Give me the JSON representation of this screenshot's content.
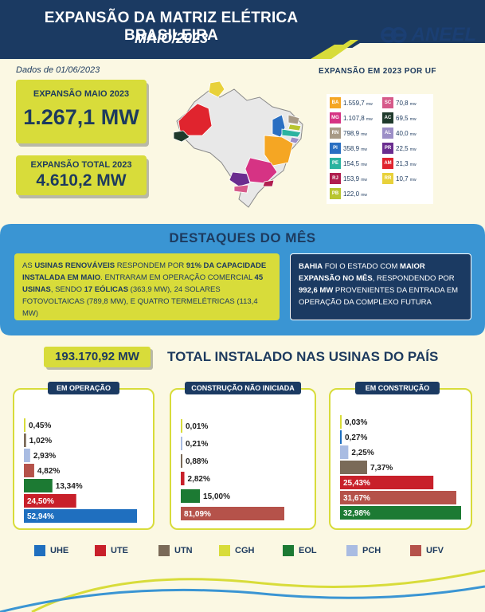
{
  "header": {
    "title": "EXPANSÃO DA MATRIZ ELÉTRICA BRASILEIRA",
    "subtitle": "MAIO/2023",
    "logo_text": "ANEEL",
    "colors": {
      "navy": "#1b3a62",
      "accent": "#d8dc3a"
    }
  },
  "date_text": "Dados de 01/06/2023",
  "expansion_month": {
    "label": "EXPANSÃO MAIO 2023",
    "value": "1.267,1 MW"
  },
  "expansion_total": {
    "label": "EXPANSÃO TOTAL 2023",
    "value": "4.610,2 MW"
  },
  "uf_expansion": {
    "title": "EXPANSÃO EM 2023 POR UF",
    "unit": "MW",
    "items": [
      {
        "uf": "BA",
        "value": "1.559,7",
        "color": "#f5a623"
      },
      {
        "uf": "MG",
        "value": "1.107,8",
        "color": "#d63384"
      },
      {
        "uf": "RN",
        "value": "798,9",
        "color": "#a89a86"
      },
      {
        "uf": "PI",
        "value": "358,9",
        "color": "#2a6fc2"
      },
      {
        "uf": "PE",
        "value": "154,5",
        "color": "#2bb3a0"
      },
      {
        "uf": "RJ",
        "value": "153,9",
        "color": "#b01e4f"
      },
      {
        "uf": "PB",
        "value": "122,0",
        "color": "#b8c530"
      },
      {
        "uf": "SC",
        "value": "70,8",
        "color": "#d65a8a"
      },
      {
        "uf": "AC",
        "value": "69,5",
        "color": "#1f3a2c"
      },
      {
        "uf": "AL",
        "value": "40,0",
        "color": "#9d8fc7"
      },
      {
        "uf": "PR",
        "value": "22,5",
        "color": "#6a2d8f"
      },
      {
        "uf": "AM",
        "value": "21,3",
        "color": "#e0242e"
      },
      {
        "uf": "RR",
        "value": "10,7",
        "color": "#e8d13a"
      }
    ]
  },
  "highlights": {
    "title": "DESTAQUES DO MÊS",
    "left": {
      "p1": "AS ",
      "b1": "USINAS RENOVÁVEIS",
      "p2": " RESPONDEM POR ",
      "b2": "91% DA CAPACIDADE INSTALADA EM MAIO",
      "p3": ". ENTRARAM EM OPERAÇÃO COMERCIAL ",
      "b3": "45 USINAS",
      "p4": ", SENDO ",
      "b4": "17 EÓLICAS",
      "p5": " (363,9 MW), 24 SOLARES FOTOVOLTAICAS (789,8 MW), E QUATRO TERMELÉTRICAS (113,4 MW)"
    },
    "right": {
      "b1": "BAHIA",
      "p1": " FOI O ESTADO COM ",
      "b2": "MAIOR EXPANSÃO NO MÊS",
      "p2": ", RESPONDENDO POR ",
      "b3": "992,6 MW",
      "p3": " PROVENIENTES DA ENTRADA EM OPERAÇÃO DA COMPLEXO FUTURA"
    }
  },
  "total_installed": {
    "value": "193.170,92 MW",
    "label": "TOTAL INSTALADO NAS USINAS DO PAÍS"
  },
  "legend": [
    {
      "name": "UHE",
      "color": "#1f6fbf"
    },
    {
      "name": "UTE",
      "color": "#c8202a"
    },
    {
      "name": "UTN",
      "color": "#7a6a58"
    },
    {
      "name": "CGH",
      "color": "#d8dc3a"
    },
    {
      "name": "EOL",
      "color": "#1c7a33"
    },
    {
      "name": "PCH",
      "color": "#a9bce2"
    },
    {
      "name": "UFV",
      "color": "#b5524a"
    }
  ],
  "chart_data": [
    {
      "type": "bar",
      "title": "EM OPERAÇÃO",
      "categories": [
        "CGH",
        "UTN",
        "PCH",
        "UFV",
        "EOL",
        "UTE",
        "UHE"
      ],
      "values": [
        0.45,
        1.02,
        2.93,
        4.82,
        13.34,
        24.5,
        52.94
      ],
      "labels": [
        "0,45%",
        "1,02%",
        "2,93%",
        "4,82%",
        "13,34%",
        "24,50%",
        "52,94%"
      ],
      "colors": [
        "#d8dc3a",
        "#7a6a58",
        "#a9bce2",
        "#b5524a",
        "#1c7a33",
        "#c8202a",
        "#1f6fbf"
      ],
      "unit": "%"
    },
    {
      "type": "bar",
      "title": "CONSTRUÇÃO NÃO INICIADA",
      "categories": [
        "CGH",
        "PCH",
        "UTN",
        "UTE",
        "EOL",
        "UFV"
      ],
      "values": [
        0.01,
        0.21,
        0.88,
        2.82,
        15.0,
        81.09
      ],
      "labels": [
        "0,01%",
        "0,21%",
        "0,88%",
        "2,82%",
        "15,00%",
        "81,09%"
      ],
      "colors": [
        "#d8dc3a",
        "#a9bce2",
        "#7a6a58",
        "#c8202a",
        "#1c7a33",
        "#b5524a"
      ],
      "unit": "%"
    },
    {
      "type": "bar",
      "title": "EM CONSTRUÇÃO",
      "categories": [
        "CGH",
        "UHE",
        "PCH",
        "UTN",
        "UTE",
        "UFV",
        "EOL"
      ],
      "values": [
        0.03,
        0.27,
        2.25,
        7.37,
        25.43,
        31.67,
        32.98
      ],
      "labels": [
        "0,03%",
        "0,27%",
        "2,25%",
        "7,37%",
        "25,43%",
        "31,67%",
        "32,98%"
      ],
      "colors": [
        "#d8dc3a",
        "#1f6fbf",
        "#a9bce2",
        "#7a6a58",
        "#c8202a",
        "#b5524a",
        "#1c7a33"
      ],
      "unit": "%"
    }
  ]
}
